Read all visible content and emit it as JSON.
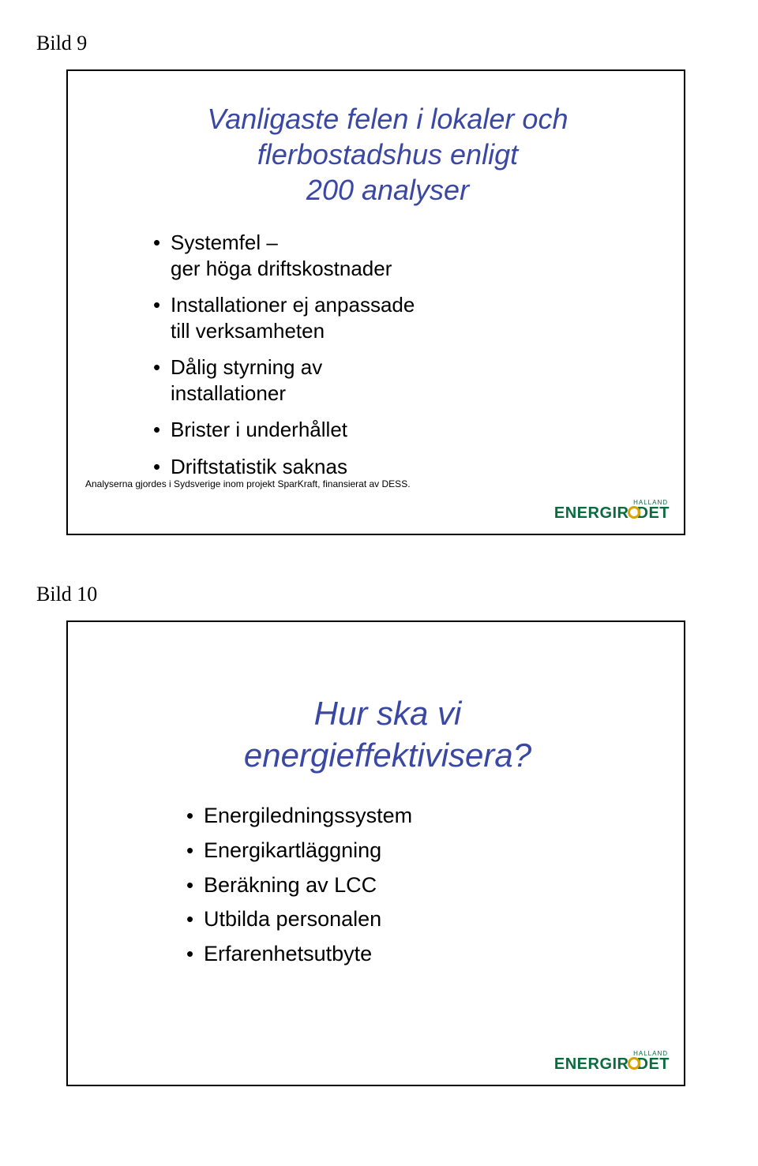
{
  "slide9": {
    "label": "Bild 9",
    "title_line1": "Vanligaste felen i lokaler och",
    "title_line2": "flerbostadshus enligt",
    "title_line3": "200 analyser",
    "bullets": {
      "b0a": "Systemfel –",
      "b0b": "ger höga driftskostnader",
      "b1a": "Installationer ej anpassade",
      "b1b": "till verksamheten",
      "b2a": "Dålig styrning av",
      "b2b": "installationer",
      "b3": "Brister i underhållet",
      "b4": "Driftstatistik saknas"
    },
    "footnote": "Analyserna gjordes i Sydsverige inom projekt SparKraft, finansierat av DESS."
  },
  "slide10": {
    "label": "Bild 10",
    "title_line1": "Hur ska vi",
    "title_line2": "energieffektivisera?",
    "bullets": {
      "b0": "Energiledningssystem",
      "b1": "Energikartläggning",
      "b2": "Beräkning av LCC",
      "b3": "Utbilda personalen",
      "b4": "Erfarenhetsutbyte"
    }
  },
  "logo": {
    "top": "HALLAND",
    "part1": "ENERGIR",
    "part2": "DET"
  },
  "colors": {
    "title": "#3a48a3",
    "logo_green": "#0a6b3f",
    "logo_gold": "#d9a400",
    "border": "#000000",
    "text": "#000000",
    "bg": "#ffffff"
  }
}
